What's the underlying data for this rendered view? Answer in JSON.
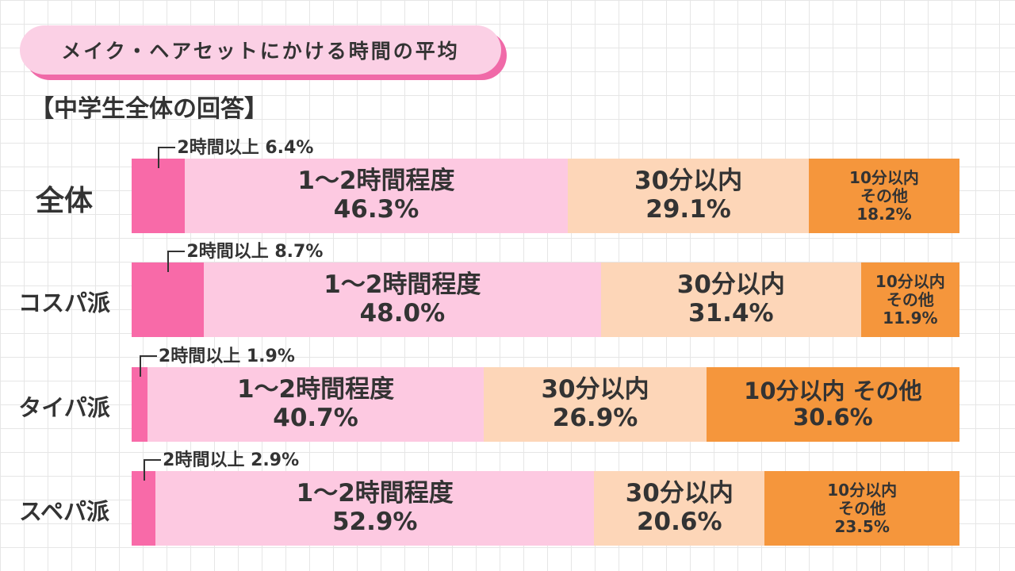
{
  "title": "メイク・ヘアセットにかける時間の平均",
  "subtitle": "【中学生全体の回答】",
  "colors": {
    "over_2h": "#f86aa8",
    "1_2h": "#fdc9e1",
    "within_30": "#fdd6b8",
    "within_10": "#f5963c",
    "title_bg": "#fbd0e5",
    "title_shadow": "#f06aa8"
  },
  "chart_data": {
    "type": "bar",
    "orientation": "horizontal",
    "stacked": true,
    "unit": "%",
    "xlim": [
      0,
      100
    ],
    "categories": [
      "全体",
      "コスパ派",
      "タイパ派",
      "スペパ派"
    ],
    "series": [
      {
        "name": "2時間以上",
        "callout": [
          "2時間以上 6.4%",
          "2時間以上 8.7%",
          "2時間以上 1.9%",
          "2時間以上 2.9%"
        ],
        "values": [
          6.4,
          8.7,
          1.9,
          2.9
        ]
      },
      {
        "name": "1〜2時間程度",
        "labels": [
          "46.3%",
          "48.0%",
          "40.7%",
          "52.9%"
        ],
        "values": [
          46.3,
          48.0,
          40.7,
          52.9
        ]
      },
      {
        "name": "30分以内",
        "labels": [
          "29.1%",
          "31.4%",
          "26.9%",
          "20.6%"
        ],
        "values": [
          29.1,
          31.4,
          26.9,
          20.6
        ]
      },
      {
        "names": [
          "10分以内\nその他",
          "10分以内\nその他",
          "10分以内 その他",
          "10分以内\nその他"
        ],
        "labels": [
          "18.2%",
          "11.9%",
          "30.6%",
          "23.5%"
        ],
        "values": [
          18.2,
          11.9,
          30.6,
          23.5
        ]
      }
    ]
  }
}
